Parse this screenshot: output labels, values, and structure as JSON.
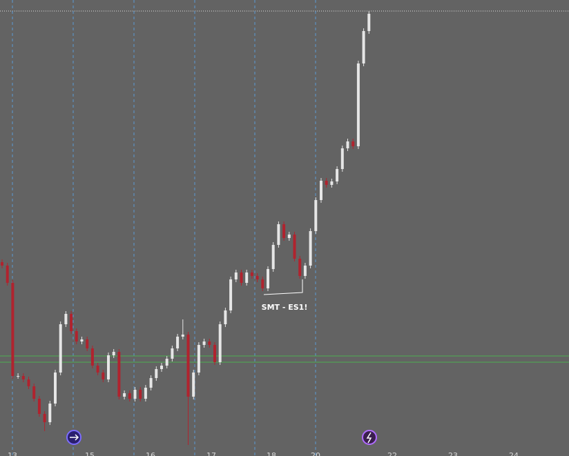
{
  "chart_data": {
    "type": "candlestick",
    "x_labels": [
      "13",
      "15",
      "16",
      "17",
      "18",
      "20",
      "22",
      "23",
      "24"
    ],
    "annotation": "SMT - ES1!",
    "up_color": "#e6e6e6",
    "down_color": "#b0232e",
    "open": [
      281,
      276,
      251,
      116,
      116,
      111,
      101,
      83,
      61,
      49,
      76,
      121,
      191,
      206,
      181,
      166,
      169,
      156,
      131,
      121,
      111,
      146,
      151,
      86,
      91,
      83,
      96,
      83,
      99,
      113,
      126,
      131,
      141,
      156,
      173,
      176,
      86,
      121,
      161,
      166,
      161,
      136,
      191,
      211,
      256,
      266,
      251,
      266,
      261,
      256,
      243,
      271,
      306,
      336,
      316,
      321,
      286,
      261,
      276,
      326,
      371,
      399,
      393,
      398,
      416,
      446,
      456,
      449,
      569,
      616
    ],
    "high": [
      285,
      280,
      255,
      120,
      120,
      115,
      105,
      87,
      65,
      80,
      125,
      195,
      210,
      210,
      185,
      173,
      173,
      160,
      135,
      125,
      150,
      155,
      155,
      95,
      95,
      100,
      100,
      103,
      117,
      130,
      135,
      145,
      160,
      177,
      198,
      180,
      125,
      165,
      170,
      170,
      165,
      195,
      215,
      260,
      270,
      270,
      270,
      270,
      265,
      260,
      275,
      310,
      340,
      340,
      325,
      325,
      290,
      280,
      330,
      375,
      403,
      403,
      402,
      420,
      450,
      460,
      460,
      573,
      620,
      645
    ],
    "low": [
      272,
      247,
      112,
      112,
      107,
      97,
      79,
      57,
      36,
      45,
      72,
      117,
      187,
      177,
      162,
      162,
      152,
      127,
      117,
      107,
      107,
      142,
      82,
      82,
      79,
      79,
      79,
      79,
      95,
      109,
      122,
      127,
      137,
      152,
      169,
      16,
      82,
      117,
      157,
      157,
      132,
      132,
      187,
      207,
      252,
      247,
      247,
      257,
      252,
      239,
      239,
      267,
      302,
      312,
      312,
      282,
      257,
      257,
      272,
      322,
      367,
      389,
      389,
      394,
      412,
      442,
      445,
      445,
      565,
      612
    ],
    "close": [
      276,
      251,
      116,
      116,
      111,
      101,
      83,
      61,
      49,
      76,
      121,
      191,
      206,
      181,
      166,
      169,
      156,
      131,
      121,
      111,
      146,
      151,
      86,
      91,
      83,
      96,
      83,
      99,
      113,
      126,
      131,
      141,
      156,
      173,
      176,
      86,
      121,
      161,
      166,
      161,
      136,
      191,
      211,
      256,
      266,
      251,
      266,
      261,
      256,
      243,
      271,
      306,
      336,
      316,
      321,
      286,
      261,
      276,
      326,
      371,
      399,
      393,
      398,
      416,
      446,
      456,
      449,
      569,
      616,
      641
    ]
  }
}
